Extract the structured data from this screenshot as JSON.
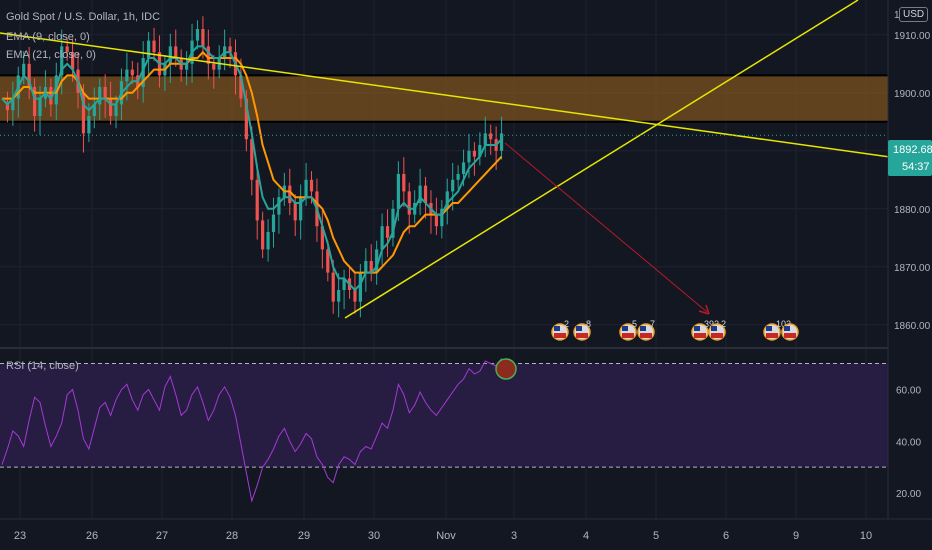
{
  "header": {
    "symbol_line": "Gold Spot / U.S. Dollar, 1h, IDC",
    "ema9_label": "EMA (9, close, 0)",
    "ema21_label": "EMA (21, close, 0)",
    "rsi_label": "RSI (14, close)",
    "currency": "USD"
  },
  "price_box": {
    "last_price": "1892.68",
    "countdown": "54:37"
  },
  "colors": {
    "background": "#131722",
    "ema9": "#26a69a",
    "ema21": "#ff9800",
    "trendline": "#e6e600",
    "zone": "#a0661c",
    "rsi": "#a43ad4",
    "rsi_band": "#2a1d46",
    "candle_up": "#26a69a",
    "candle_down": "#ef5350",
    "price_tag": "#26a69a",
    "projection": "#b81b2a",
    "grid": "#1f2330"
  },
  "events": [
    {
      "count": "2"
    },
    {
      "count": "8"
    },
    {
      "count": "5"
    },
    {
      "count": "7"
    },
    {
      "count": "392"
    },
    {
      "count": "2"
    },
    {
      "count": "102"
    },
    {
      "count": ""
    }
  ],
  "chart_data": [
    {
      "type": "candlestick",
      "title": "Gold Spot / U.S. Dollar, 1h, IDC",
      "x_tick_labels": [
        "23",
        "26",
        "27",
        "28",
        "29",
        "30",
        "Nov",
        "3",
        "4",
        "5",
        "6",
        "9",
        "10"
      ],
      "y_tick_labels": [
        "1860.00",
        "1870.00",
        "1880.00",
        "1890.00",
        "1900.00",
        "1910.00",
        "1"
      ],
      "ylim": [
        1856,
        1916
      ],
      "series_price": [
        1898,
        1897,
        1899,
        1903,
        1905,
        1901,
        1896,
        1899,
        1901,
        1898,
        1903,
        1908,
        1907,
        1904,
        1900,
        1893,
        1896,
        1898,
        1901,
        1899,
        1896,
        1898,
        1902,
        1904,
        1903,
        1901,
        1906,
        1909,
        1907,
        1903,
        1905,
        1908,
        1906,
        1904,
        1905,
        1909,
        1911,
        1908,
        1905,
        1904,
        1906,
        1908,
        1907,
        1903,
        1899,
        1892,
        1885,
        1878,
        1873,
        1876,
        1879,
        1882,
        1884,
        1881,
        1878,
        1882,
        1885,
        1883,
        1877,
        1873,
        1869,
        1864,
        1866,
        1868,
        1866,
        1864,
        1869,
        1871,
        1869,
        1873,
        1877,
        1875,
        1880,
        1886,
        1883,
        1879,
        1881,
        1884,
        1881,
        1879,
        1877,
        1880,
        1883,
        1885,
        1886,
        1888,
        1890,
        1889,
        1891,
        1893,
        1892,
        1890,
        1893
      ],
      "ema9": [
        1899,
        1898,
        1899,
        1901,
        1903,
        1902,
        1899,
        1899,
        1900,
        1899,
        1901,
        1904,
        1905,
        1904,
        1902,
        1898,
        1897,
        1898,
        1899,
        1899,
        1898,
        1898,
        1900,
        1901,
        1902,
        1902,
        1904,
        1906,
        1906,
        1905,
        1905,
        1906,
        1906,
        1905,
        1905,
        1907,
        1908,
        1908,
        1907,
        1906,
        1906,
        1907,
        1907,
        1905,
        1903,
        1898,
        1893,
        1887,
        1882,
        1880,
        1880,
        1881,
        1882,
        1882,
        1881,
        1881,
        1882,
        1882,
        1880,
        1877,
        1874,
        1870,
        1868,
        1868,
        1867,
        1866,
        1867,
        1869,
        1869,
        1870,
        1873,
        1874,
        1876,
        1880,
        1881,
        1880,
        1880,
        1882,
        1881,
        1880,
        1879,
        1879,
        1881,
        1882,
        1883,
        1885,
        1887,
        1888,
        1889,
        1891,
        1891,
        1891,
        1892
      ],
      "ema21": [
        1899,
        1899,
        1899,
        1900,
        1901,
        1901,
        1900,
        1900,
        1900,
        1900,
        1900,
        1902,
        1903,
        1903,
        1902,
        1900,
        1899,
        1899,
        1899,
        1899,
        1899,
        1899,
        1899,
        1900,
        1900,
        1901,
        1902,
        1903,
        1904,
        1904,
        1904,
        1905,
        1905,
        1905,
        1905,
        1906,
        1906,
        1907,
        1906,
        1906,
        1906,
        1906,
        1906,
        1906,
        1905,
        1903,
        1900,
        1896,
        1891,
        1888,
        1885,
        1884,
        1883,
        1883,
        1882,
        1882,
        1882,
        1882,
        1881,
        1880,
        1878,
        1875,
        1873,
        1871,
        1870,
        1869,
        1869,
        1869,
        1869,
        1869,
        1870,
        1871,
        1872,
        1874,
        1876,
        1877,
        1877,
        1878,
        1879,
        1879,
        1879,
        1879,
        1880,
        1881,
        1881,
        1882,
        1883,
        1884,
        1885,
        1886,
        1887,
        1888,
        1889
      ],
      "price_label": "1892.68",
      "zone": [
        1895,
        1903
      ]
    },
    {
      "type": "line",
      "title": "RSI (14, close)",
      "y_tick_labels": [
        "20.00",
        "40.00",
        "60.00"
      ],
      "ylim": [
        10,
        76
      ],
      "upper_band": 70,
      "lower_band": 30,
      "values": [
        31,
        37,
        44,
        42,
        38,
        48,
        57,
        55,
        46,
        38,
        42,
        47,
        58,
        60,
        52,
        41,
        37,
        45,
        53,
        55,
        50,
        56,
        60,
        62,
        56,
        52,
        58,
        60,
        56,
        52,
        61,
        65,
        58,
        50,
        52,
        58,
        61,
        55,
        48,
        52,
        58,
        61,
        57,
        50,
        39,
        28,
        17,
        23,
        30,
        33,
        37,
        42,
        45,
        40,
        36,
        39,
        43,
        41,
        34,
        31,
        26,
        24,
        31,
        34,
        33,
        31,
        36,
        38,
        37,
        42,
        47,
        45,
        52,
        62,
        58,
        51,
        54,
        59,
        55,
        52,
        50,
        53,
        56,
        59,
        62,
        64,
        68,
        66,
        67,
        71,
        70,
        69,
        72
      ]
    }
  ]
}
